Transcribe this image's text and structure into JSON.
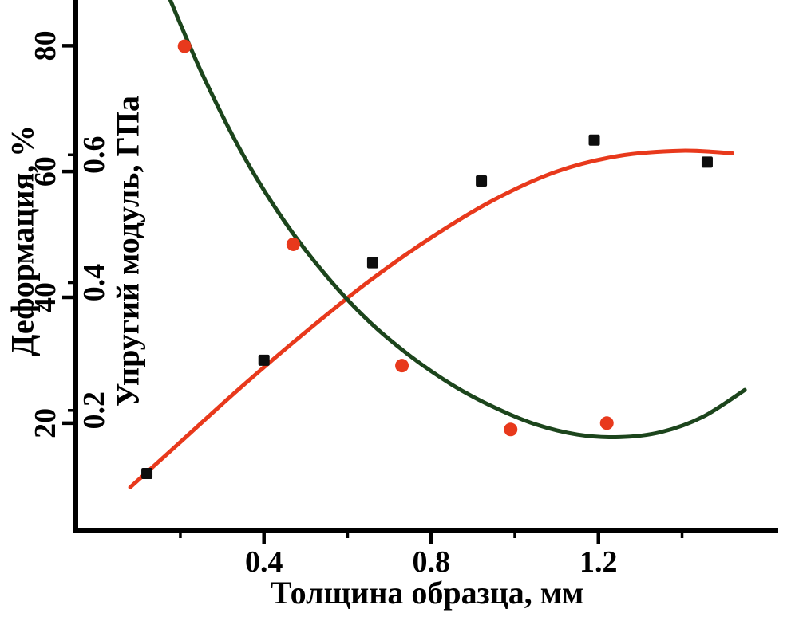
{
  "chart_data": {
    "type": "scatter",
    "title": "",
    "background": "#ffffff",
    "axis_color": "#000000",
    "grid": false,
    "legend": "none",
    "x_axis": {
      "label": "Толщина образца, мм",
      "unit": "мм",
      "range": [
        -0.05,
        1.63
      ],
      "major_ticks": [
        0.4,
        0.8,
        1.2
      ],
      "tick_labels": [
        "0.4",
        "0.8",
        "1.2"
      ],
      "minor_ticks": [
        0.2,
        0.6,
        1.0,
        1.4
      ]
    },
    "y_axis_deformation": {
      "label": "Деформация, %",
      "unit": "%",
      "range": [
        3,
        86
      ],
      "major_ticks": [
        20,
        40,
        60,
        80
      ],
      "tick_labels": [
        "20",
        "40",
        "60",
        "80"
      ],
      "label_side": "outer"
    },
    "y_axis_modulus": {
      "label": "Упругий модуль, ГПа",
      "unit": "ГПа",
      "range": [
        0.0125,
        0.83
      ],
      "major_ticks": [
        0.2,
        0.4,
        0.6
      ],
      "tick_labels": [
        "0.2",
        "0.4",
        "0.6"
      ],
      "label_side": "inner"
    },
    "series": [
      {
        "name": "Деформация, %",
        "axis": "deformation",
        "marker": "square",
        "marker_color": "#0d0d0d",
        "marker_size": 14,
        "curve_color": "#e8391c",
        "points": [
          [
            0.12,
            12
          ],
          [
            0.4,
            30
          ],
          [
            0.66,
            45.5
          ],
          [
            0.92,
            58.5
          ],
          [
            1.19,
            65
          ],
          [
            1.46,
            61.5
          ]
        ],
        "fit_curve": [
          [
            0.08,
            9.8
          ],
          [
            0.2,
            17
          ],
          [
            0.35,
            26
          ],
          [
            0.5,
            34.5
          ],
          [
            0.65,
            42.5
          ],
          [
            0.8,
            49.5
          ],
          [
            0.95,
            55.5
          ],
          [
            1.1,
            60
          ],
          [
            1.25,
            62.5
          ],
          [
            1.4,
            63.3
          ],
          [
            1.52,
            62.9
          ]
        ]
      },
      {
        "name": "Упругий модуль, ГПа",
        "axis": "modulus",
        "marker": "circle",
        "marker_color": "#e8391c",
        "marker_size": 17,
        "curve_color": "#1c451c",
        "points": [
          [
            0.21,
            0.77
          ],
          [
            0.47,
            0.46
          ],
          [
            0.73,
            0.27
          ],
          [
            0.99,
            0.17
          ],
          [
            1.22,
            0.18
          ]
        ],
        "fit_curve": [
          [
            0.155,
            0.875
          ],
          [
            0.25,
            0.73
          ],
          [
            0.35,
            0.6
          ],
          [
            0.45,
            0.495
          ],
          [
            0.55,
            0.41
          ],
          [
            0.65,
            0.34
          ],
          [
            0.75,
            0.285
          ],
          [
            0.85,
            0.24
          ],
          [
            0.95,
            0.205
          ],
          [
            1.05,
            0.178
          ],
          [
            1.15,
            0.162
          ],
          [
            1.25,
            0.158
          ],
          [
            1.35,
            0.166
          ],
          [
            1.45,
            0.19
          ],
          [
            1.55,
            0.232
          ]
        ]
      }
    ]
  }
}
